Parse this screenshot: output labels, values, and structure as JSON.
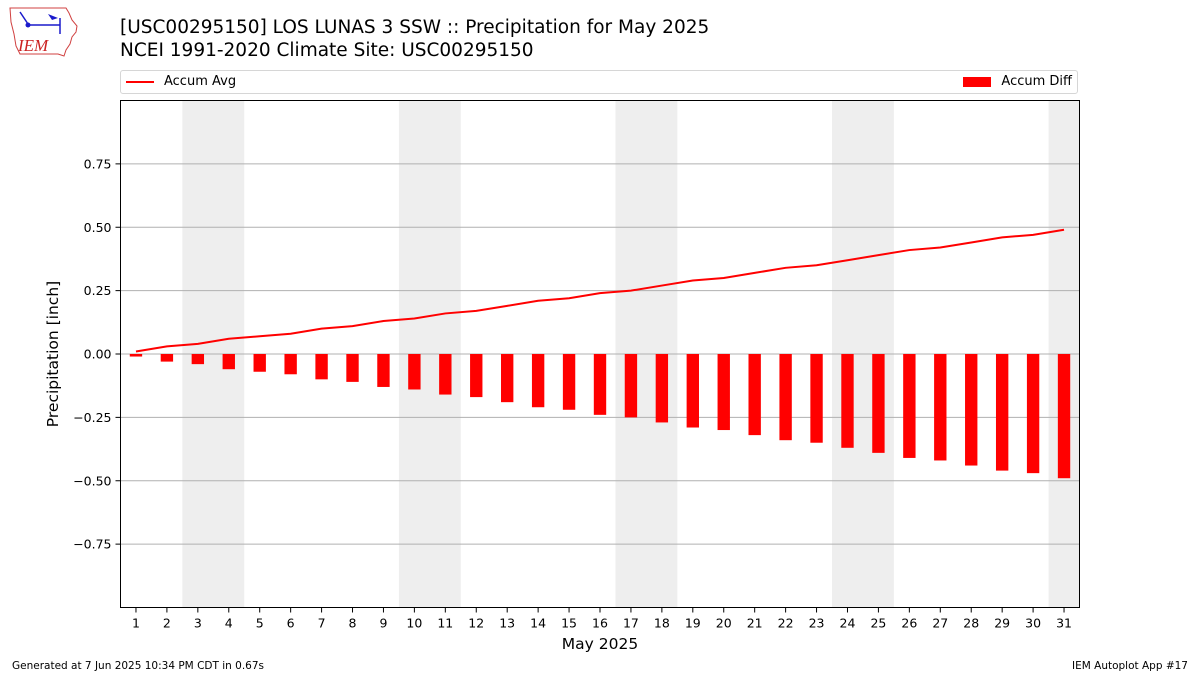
{
  "header": {
    "title": "[USC00295150] LOS LUNAS 3 SSW :: Precipitation for May 2025",
    "subtitle": "NCEI 1991-2020 Climate Site: USC00295150"
  },
  "logo": {
    "text": "IEM",
    "icon": "iem-iowa-logo"
  },
  "legend": {
    "avg_label": "Accum Avg",
    "diff_label": "Accum Diff",
    "placement": "top"
  },
  "footer": {
    "left": "Generated at 7 Jun 2025 10:34 PM CDT in 0.67s",
    "right": "IEM Autoplot App #17"
  },
  "colors": {
    "series": "#ff0000",
    "weekend_shade": "#eeeeee",
    "grid": "#b0b0b0"
  },
  "chart_data": {
    "type": "bar",
    "xlabel": "May 2025",
    "ylabel": "Precipitation [inch]",
    "ylim": [
      -1.0,
      1.0
    ],
    "xlim": [
      0.5,
      31.5
    ],
    "yticks": [
      -0.75,
      -0.5,
      -0.25,
      0.0,
      0.25,
      0.5,
      0.75
    ],
    "ytick_labels": [
      "−0.75",
      "−0.50",
      "−0.25",
      "0.00",
      "0.25",
      "0.50",
      "0.75"
    ],
    "grid": "horizontal",
    "days": [
      1,
      2,
      3,
      4,
      5,
      6,
      7,
      8,
      9,
      10,
      11,
      12,
      13,
      14,
      15,
      16,
      17,
      18,
      19,
      20,
      21,
      22,
      23,
      24,
      25,
      26,
      27,
      28,
      29,
      30,
      31
    ],
    "weekend_ranges": [
      [
        2.5,
        4.5
      ],
      [
        9.5,
        11.5
      ],
      [
        16.5,
        18.5
      ],
      [
        23.5,
        25.5
      ],
      [
        30.5,
        31.5
      ]
    ],
    "series": [
      {
        "name": "Accum Avg",
        "type": "line",
        "values": [
          0.01,
          0.03,
          0.04,
          0.06,
          0.07,
          0.08,
          0.1,
          0.11,
          0.13,
          0.14,
          0.16,
          0.17,
          0.19,
          0.21,
          0.22,
          0.24,
          0.25,
          0.27,
          0.29,
          0.3,
          0.32,
          0.34,
          0.35,
          0.37,
          0.39,
          0.41,
          0.42,
          0.44,
          0.46,
          0.47,
          0.49
        ]
      },
      {
        "name": "Accum Diff",
        "type": "bar",
        "values": [
          -0.01,
          -0.03,
          -0.04,
          -0.06,
          -0.07,
          -0.08,
          -0.1,
          -0.11,
          -0.13,
          -0.14,
          -0.16,
          -0.17,
          -0.19,
          -0.21,
          -0.22,
          -0.24,
          -0.25,
          -0.27,
          -0.29,
          -0.3,
          -0.32,
          -0.34,
          -0.35,
          -0.37,
          -0.39,
          -0.41,
          -0.42,
          -0.44,
          -0.46,
          -0.47,
          -0.49
        ]
      }
    ]
  }
}
